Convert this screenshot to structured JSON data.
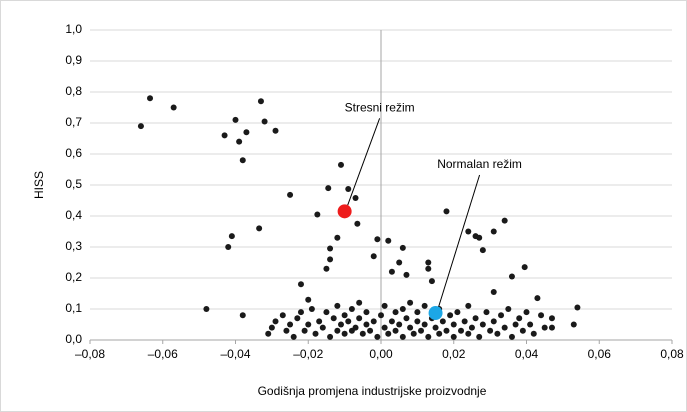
{
  "chart_data": {
    "type": "scatter",
    "x_label": "Godišnja promjena industrijske proizvodnje",
    "y_label": "HISS",
    "xlim": [
      -0.08,
      0.08
    ],
    "xticks": [
      {
        "value": -0.08,
        "label": "–0,08"
      },
      {
        "value": -0.06,
        "label": "–0,06"
      },
      {
        "value": -0.04,
        "label": "–0,04"
      },
      {
        "value": -0.02,
        "label": "–0,02"
      },
      {
        "value": 0,
        "label": "0,00"
      },
      {
        "value": 0.02,
        "label": "0,02"
      },
      {
        "value": 0.04,
        "label": "0,04"
      },
      {
        "value": 0.06,
        "label": "0,06"
      },
      {
        "value": 0.08,
        "label": "0,08"
      }
    ],
    "ylim": [
      0,
      1
    ],
    "yticks": [
      {
        "value": 0,
        "label": "0,0"
      },
      {
        "value": 0.1,
        "label": "0,1"
      },
      {
        "value": 0.2,
        "label": "0,2"
      },
      {
        "value": 0.3,
        "label": "0,3"
      },
      {
        "value": 0.4,
        "label": "0,4"
      },
      {
        "value": 0.5,
        "label": "0,5"
      },
      {
        "value": 0.6,
        "label": "0,6"
      },
      {
        "value": 0.7,
        "label": "0,7"
      },
      {
        "value": 0.8,
        "label": "0,8"
      },
      {
        "value": 0.9,
        "label": "0,9"
      },
      {
        "value": 1,
        "label": "1,0"
      }
    ],
    "grid": true,
    "series": [
      {
        "color": "#1a1a1a",
        "x": [
          -0.066,
          -0.0635,
          -0.057,
          -0.048,
          -0.043,
          -0.042,
          -0.041,
          -0.04,
          -0.039,
          -0.038,
          -0.038,
          -0.037,
          -0.0335,
          -0.033,
          -0.032,
          -0.029,
          -0.025,
          -0.022,
          -0.0175,
          -0.0145,
          -0.014,
          -0.014,
          -0.012,
          -0.011,
          -0.009,
          -0.007,
          -0.0065,
          -0.001,
          0.002,
          0.006,
          -0.002,
          0.003,
          0.005,
          0.007,
          0.013,
          0.013,
          0.014,
          0.018,
          0.024,
          0.026,
          0.027,
          0.028,
          0.031,
          0.034,
          0.036,
          0.0395,
          0.043,
          0.031,
          0.054,
          0.053,
          0.047,
          0.047,
          -0.015,
          -0.02,
          -0.031,
          -0.03,
          -0.029,
          -0.027,
          -0.026,
          -0.025,
          -0.024,
          -0.023,
          -0.022,
          -0.021,
          -0.02,
          -0.019,
          -0.018,
          -0.017,
          -0.016,
          -0.015,
          -0.014,
          -0.013,
          -0.012,
          -0.012,
          -0.011,
          -0.01,
          -0.01,
          -0.009,
          -0.008,
          -0.008,
          -0.007,
          -0.006,
          -0.006,
          -0.005,
          -0.004,
          -0.004,
          -0.003,
          -0.002,
          -0.001,
          0.0,
          0.001,
          0.001,
          0.002,
          0.003,
          0.004,
          0.004,
          0.005,
          0.006,
          0.006,
          0.007,
          0.008,
          0.008,
          0.009,
          0.01,
          0.01,
          0.011,
          0.012,
          0.012,
          0.013,
          0.014,
          0.015,
          0.016,
          0.016,
          0.017,
          0.018,
          0.019,
          0.02,
          0.02,
          0.021,
          0.022,
          0.023,
          0.024,
          0.024,
          0.025,
          0.026,
          0.027,
          0.028,
          0.029,
          0.03,
          0.031,
          0.032,
          0.033,
          0.034,
          0.035,
          0.036,
          0.037,
          0.038,
          0.039,
          0.04,
          0.041,
          0.042,
          0.044,
          0.045
        ],
        "values": [
          0.69,
          0.78,
          0.75,
          0.1,
          0.66,
          0.3,
          0.335,
          0.71,
          0.64,
          0.58,
          0.08,
          0.67,
          0.36,
          0.77,
          0.705,
          0.675,
          0.468,
          0.18,
          0.405,
          0.49,
          0.26,
          0.295,
          0.33,
          0.565,
          0.487,
          0.458,
          0.375,
          0.325,
          0.32,
          0.297,
          0.27,
          0.22,
          0.25,
          0.21,
          0.25,
          0.23,
          0.19,
          0.415,
          0.35,
          0.335,
          0.33,
          0.29,
          0.35,
          0.385,
          0.205,
          0.235,
          0.135,
          0.155,
          0.105,
          0.05,
          0.07,
          0.04,
          0.23,
          0.13,
          0.02,
          0.04,
          0.06,
          0.08,
          0.03,
          0.05,
          0.01,
          0.07,
          0.09,
          0.03,
          0.05,
          0.1,
          0.02,
          0.06,
          0.04,
          0.09,
          0.01,
          0.07,
          0.03,
          0.11,
          0.05,
          0.02,
          0.08,
          0.06,
          0.1,
          0.03,
          0.04,
          0.07,
          0.12,
          0.02,
          0.05,
          0.09,
          0.03,
          0.06,
          0.01,
          0.08,
          0.04,
          0.11,
          0.02,
          0.06,
          0.09,
          0.03,
          0.05,
          0.1,
          0.01,
          0.07,
          0.04,
          0.12,
          0.02,
          0.06,
          0.09,
          0.03,
          0.05,
          0.11,
          0.01,
          0.07,
          0.04,
          0.1,
          0.02,
          0.06,
          0.03,
          0.08,
          0.05,
          0.01,
          0.09,
          0.03,
          0.06,
          0.11,
          0.02,
          0.04,
          0.07,
          0.01,
          0.05,
          0.09,
          0.03,
          0.06,
          0.02,
          0.08,
          0.04,
          0.1,
          0.01,
          0.05,
          0.07,
          0.03,
          0.09,
          0.05,
          0.02,
          0.08,
          0.04
        ]
      }
    ],
    "highlights": [
      {
        "label": "Stresni režim",
        "x": -0.01,
        "y": 0.415,
        "color": "#ee1c1c"
      },
      {
        "label": "Normalan režim",
        "x": 0.015,
        "y": 0.087,
        "color": "#1ca7e6"
      }
    ]
  }
}
